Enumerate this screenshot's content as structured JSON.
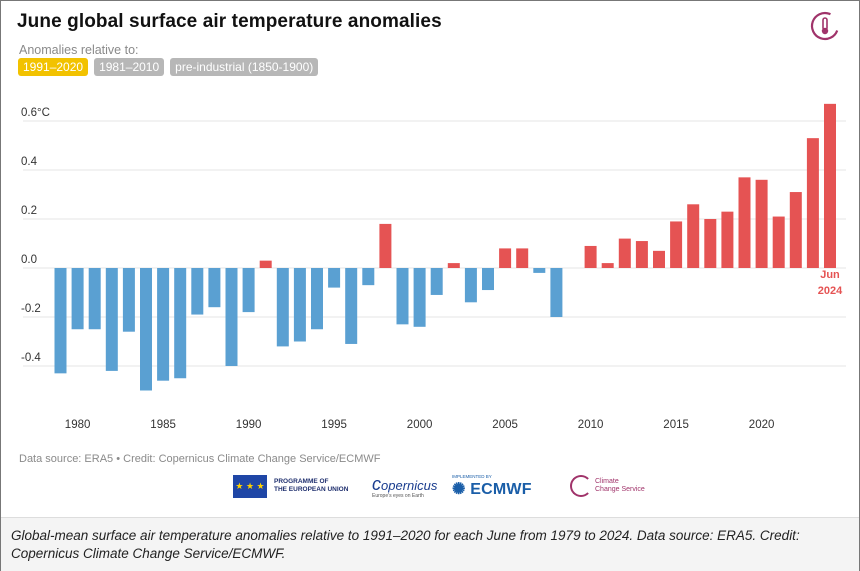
{
  "header": {
    "title": "June global surface air temperature anomalies",
    "relative_label": "Anomalies relative to:",
    "logo_icon": "c3s-thermometer-icon"
  },
  "baseline_buttons": [
    {
      "label": "1991–2020",
      "active": true
    },
    {
      "label": "1981–2010",
      "active": false
    },
    {
      "label": "pre-industrial (1850-1900)",
      "active": false
    }
  ],
  "chart_data": {
    "type": "bar",
    "title": "June global surface air temperature anomalies",
    "xlabel": "",
    "ylabel": "°C",
    "ylim": [
      -0.6,
      0.7
    ],
    "y_ticks": [
      {
        "value": 0.6,
        "label": "0.6°C"
      },
      {
        "value": 0.4,
        "label": "0.4"
      },
      {
        "value": 0.2,
        "label": "0.2"
      },
      {
        "value": 0.0,
        "label": "0.0"
      },
      {
        "value": -0.2,
        "label": "-0.2"
      },
      {
        "value": -0.4,
        "label": "-0.4"
      }
    ],
    "x_ticks": [
      1980,
      1985,
      1990,
      1995,
      2000,
      2005,
      2010,
      2015,
      2020
    ],
    "x_tick_labels": [
      "1980",
      "1985",
      "1990",
      "1995",
      "2000",
      "2005",
      "2010",
      "2015",
      "2020"
    ],
    "years": [
      1979,
      1980,
      1981,
      1982,
      1983,
      1984,
      1985,
      1986,
      1987,
      1988,
      1989,
      1990,
      1991,
      1992,
      1993,
      1994,
      1995,
      1996,
      1997,
      1998,
      1999,
      2000,
      2001,
      2002,
      2003,
      2004,
      2005,
      2006,
      2007,
      2008,
      2009,
      2010,
      2011,
      2012,
      2013,
      2014,
      2015,
      2016,
      2017,
      2018,
      2019,
      2020,
      2021,
      2022,
      2023,
      2024
    ],
    "values": [
      -0.43,
      -0.25,
      -0.25,
      -0.42,
      -0.26,
      -0.5,
      -0.46,
      -0.45,
      -0.19,
      -0.16,
      -0.4,
      -0.18,
      0.03,
      -0.32,
      -0.3,
      -0.25,
      -0.08,
      -0.31,
      -0.07,
      0.18,
      -0.23,
      -0.24,
      -0.11,
      0.02,
      -0.14,
      -0.09,
      0.08,
      0.08,
      -0.02,
      -0.2,
      0.0,
      0.09,
      0.02,
      0.12,
      0.11,
      0.07,
      0.19,
      0.26,
      0.2,
      0.23,
      0.37,
      0.36,
      0.21,
      0.31,
      0.53,
      0.67
    ],
    "colors": {
      "positive": "#e55353",
      "negative": "#5aa0d2"
    },
    "annotation": {
      "line1": "Jun",
      "line2": "2024",
      "color": "#e55353"
    }
  },
  "footer": {
    "source": "Data source: ERA5 • Credit: Copernicus Climate Change Service/ECMWF",
    "eu_line1": "PROGRAMME OF",
    "eu_line2": "THE EUROPEAN UNION",
    "copernicus": "opernicus",
    "copernicus_sub": "Europe's eyes on Earth",
    "ecmwf_small": "IMPLEMENTED BY",
    "ecmwf": "ECMWF",
    "c3s_line1": "Climate",
    "c3s_line2": "Change Service"
  },
  "caption": "Global-mean surface air temperature anomalies relative to 1991–2020 for each June from 1979 to 2024. Data source: ERA5. Credit: Copernicus Climate Change Service/ECMWF."
}
